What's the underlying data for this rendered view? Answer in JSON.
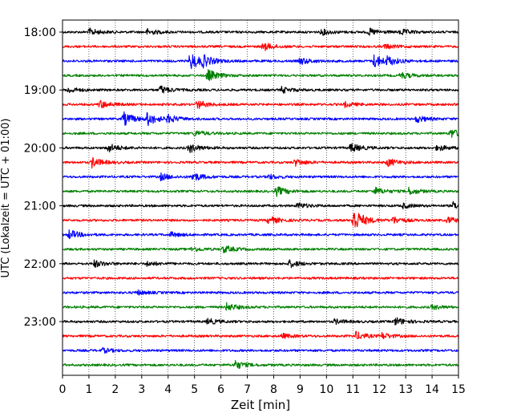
{
  "chart_data": {
    "type": "line",
    "xlabel": "Zeit  [min]",
    "ylabel": "UTC (Lokalzeit = UTC + 01:00)",
    "xlim": [
      0,
      15
    ],
    "x_ticks": [
      "0",
      "1",
      "2",
      "3",
      "4",
      "5",
      "6",
      "7",
      "8",
      "9",
      "10",
      "11",
      "12",
      "13",
      "14",
      "15"
    ],
    "y_ticks": [
      "18:00",
      "19:00",
      "20:00",
      "21:00",
      "22:00",
      "23:00"
    ],
    "grid": "vertical dotted at each minute",
    "colors": [
      "#000000",
      "#ff0000",
      "#0000ff",
      "#008000"
    ],
    "traces": [
      {
        "start": "18:00",
        "color": "#000000",
        "events": [
          [
            1.0,
            0.6
          ],
          [
            3.2,
            0.5
          ],
          [
            9.8,
            0.5
          ],
          [
            11.6,
            0.6
          ],
          [
            12.8,
            0.5
          ]
        ]
      },
      {
        "start": "18:15",
        "color": "#ff0000",
        "events": [
          [
            7.6,
            0.7
          ],
          [
            12.2,
            0.4
          ]
        ]
      },
      {
        "start": "18:30",
        "color": "#0000ff",
        "events": [
          [
            4.85,
            1.5
          ],
          [
            5.3,
            0.8
          ],
          [
            9.0,
            0.6
          ],
          [
            11.8,
            1.2
          ],
          [
            12.3,
            0.6
          ]
        ]
      },
      {
        "start": "18:45",
        "color": "#008000",
        "events": [
          [
            5.5,
            1.0
          ],
          [
            12.8,
            0.6
          ]
        ]
      },
      {
        "start": "19:00",
        "color": "#000000",
        "events": [
          [
            3.7,
            0.7
          ],
          [
            0.2,
            0.5
          ],
          [
            8.3,
            0.5
          ]
        ]
      },
      {
        "start": "19:15",
        "color": "#ff0000",
        "events": [
          [
            1.4,
            0.7
          ],
          [
            5.1,
            0.7
          ],
          [
            10.7,
            0.4
          ]
        ]
      },
      {
        "start": "19:30",
        "color": "#0000ff",
        "events": [
          [
            2.3,
            1.2
          ],
          [
            3.2,
            1.1
          ],
          [
            4.0,
            0.6
          ],
          [
            13.4,
            0.6
          ]
        ]
      },
      {
        "start": "19:45",
        "color": "#008000",
        "events": [
          [
            14.7,
            0.8
          ],
          [
            5.0,
            0.5
          ]
        ]
      },
      {
        "start": "20:00",
        "color": "#000000",
        "events": [
          [
            1.7,
            0.8
          ],
          [
            4.8,
            0.8
          ],
          [
            10.9,
            0.8
          ],
          [
            14.2,
            0.5
          ]
        ]
      },
      {
        "start": "20:15",
        "color": "#ff0000",
        "events": [
          [
            1.1,
            0.9
          ],
          [
            8.8,
            0.6
          ],
          [
            12.3,
            0.7
          ]
        ]
      },
      {
        "start": "20:30",
        "color": "#0000ff",
        "events": [
          [
            3.7,
            0.6
          ],
          [
            4.9,
            0.8
          ],
          [
            7.8,
            0.4
          ]
        ]
      },
      {
        "start": "20:45",
        "color": "#008000",
        "events": [
          [
            8.1,
            0.8
          ],
          [
            11.8,
            0.7
          ],
          [
            13.1,
            0.6
          ]
        ]
      },
      {
        "start": "21:00",
        "color": "#000000",
        "events": [
          [
            8.9,
            0.5
          ],
          [
            12.9,
            0.4
          ],
          [
            14.8,
            0.6
          ]
        ]
      },
      {
        "start": "21:15",
        "color": "#ff0000",
        "events": [
          [
            11.0,
            2.2
          ],
          [
            7.8,
            0.7
          ],
          [
            12.5,
            0.6
          ],
          [
            14.6,
            0.5
          ]
        ]
      },
      {
        "start": "21:30",
        "color": "#0000ff",
        "events": [
          [
            0.25,
            0.8
          ],
          [
            4.1,
            0.4
          ]
        ]
      },
      {
        "start": "21:45",
        "color": "#008000",
        "events": [
          [
            6.1,
            0.6
          ],
          [
            4.9,
            0.4
          ]
        ]
      },
      {
        "start": "22:00",
        "color": "#000000",
        "events": [
          [
            1.2,
            0.6
          ],
          [
            8.6,
            0.6
          ],
          [
            3.2,
            0.4
          ]
        ]
      },
      {
        "start": "22:15",
        "color": "#ff0000",
        "events": []
      },
      {
        "start": "22:30",
        "color": "#0000ff",
        "events": [
          [
            2.8,
            0.4
          ]
        ]
      },
      {
        "start": "22:45",
        "color": "#008000",
        "events": [
          [
            6.2,
            0.7
          ],
          [
            14.0,
            0.4
          ]
        ]
      },
      {
        "start": "23:00",
        "color": "#000000",
        "events": [
          [
            5.5,
            0.5
          ],
          [
            10.3,
            0.4
          ],
          [
            12.6,
            0.7
          ]
        ]
      },
      {
        "start": "23:15",
        "color": "#ff0000",
        "events": [
          [
            8.3,
            0.4
          ],
          [
            11.1,
            0.7
          ],
          [
            12.1,
            0.5
          ]
        ]
      },
      {
        "start": "23:30",
        "color": "#0000ff",
        "events": [
          [
            1.5,
            0.4
          ]
        ]
      },
      {
        "start": "23:45",
        "color": "#008000",
        "events": [
          [
            6.5,
            0.8
          ]
        ]
      }
    ]
  }
}
